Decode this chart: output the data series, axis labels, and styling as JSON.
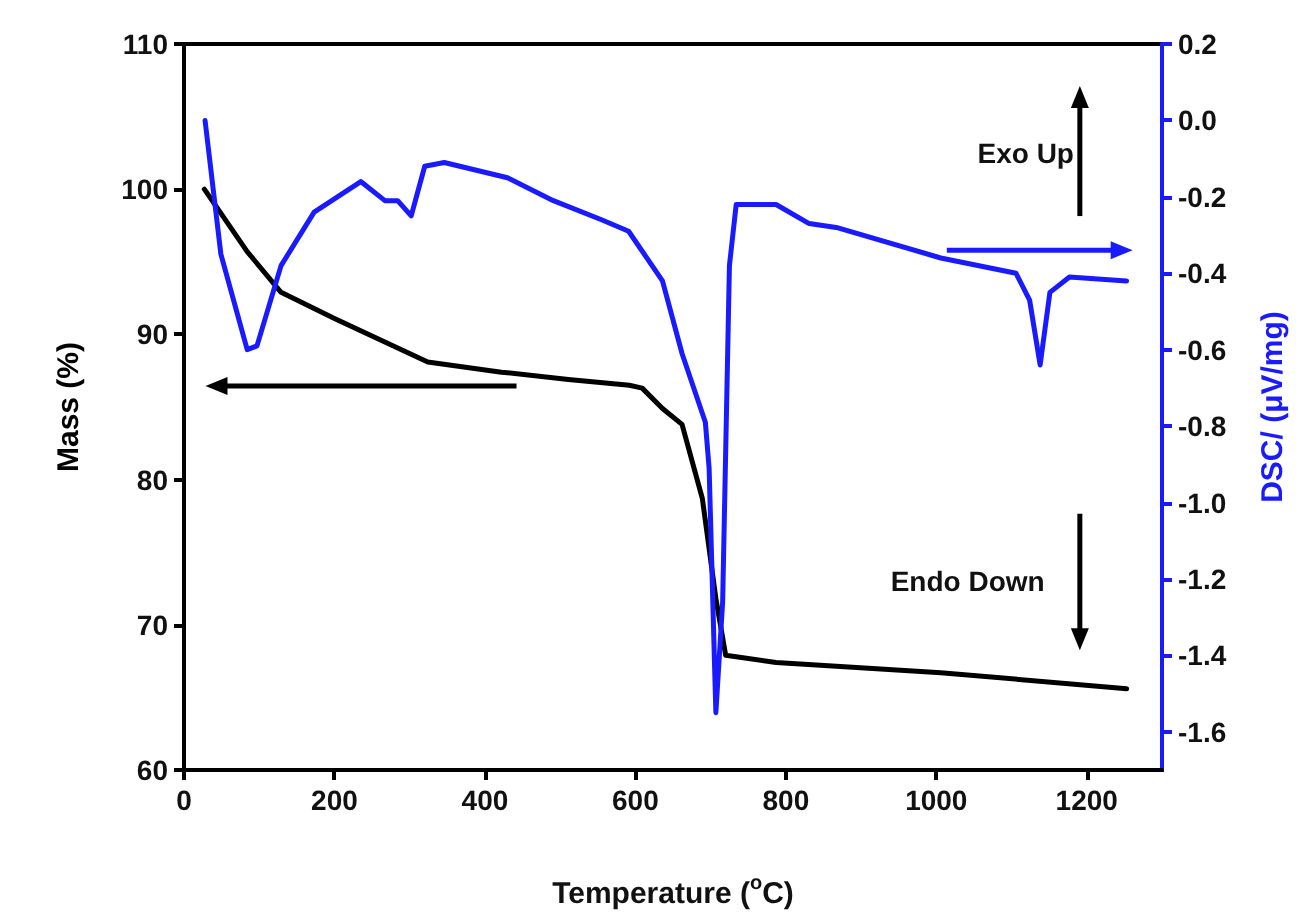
{
  "chart_data": {
    "type": "line",
    "xlabel": "Temperature ($^{o}$C)",
    "ylabel": "Mass (%)",
    "y2label": "DSC/ (μV/mg)",
    "xlim": [
      0,
      1300
    ],
    "xticks": [
      0,
      200,
      400,
      600,
      800,
      1000,
      1200
    ],
    "ylim": [
      60,
      110
    ],
    "yticks": [
      60,
      70,
      80,
      90,
      100,
      110
    ],
    "y2lim": [
      -1.7,
      0.2
    ],
    "y2ticks": [
      -1.6,
      -1.4,
      -1.2,
      {
        "value": -1,
        "label": "-1.0"
      },
      -0.8,
      -0.6,
      -0.4,
      -0.2,
      {
        "value": 0,
        "label": "0.0"
      },
      0.2
    ],
    "grid": false,
    "marker": "none",
    "line_style": "solid",
    "annotations": [
      "Exo Up",
      "Endo Down"
    ],
    "series": [
      {
        "color": "#000000",
        "x": [
          27,
          84,
          129,
          200,
          324,
          422,
          511,
          592,
          609,
          636,
          662,
          689,
          707,
          720,
          787,
          1006,
          1253
        ],
        "values": [
          100,
          95.7,
          92.9,
          91.1,
          88.1,
          87.4,
          86.9,
          86.5,
          86.3,
          84.9,
          83.8,
          78.7,
          71.8,
          67.9,
          67.4,
          66.7,
          65.6
        ]
      },
      {
        "color": "#1a1aff",
        "axis": "y2",
        "x": [
          28,
          49,
          84,
          97,
          129,
          173,
          235,
          267,
          284,
          302,
          320,
          346,
          430,
          491,
          555,
          591,
          636,
          662,
          693,
          698,
          707,
          716,
          725,
          734,
          787,
          831,
          867,
          1006,
          1106,
          1124,
          1138,
          1151,
          1177,
          1253
        ],
        "values": [
          0.0,
          -0.35,
          -0.6,
          -0.59,
          -0.38,
          -0.24,
          -0.16,
          -0.21,
          -0.21,
          -0.25,
          -0.12,
          -0.11,
          -0.15,
          -0.21,
          -0.26,
          -0.29,
          -0.42,
          -0.61,
          -0.79,
          -0.91,
          -1.55,
          -1.26,
          -0.38,
          -0.22,
          -0.22,
          -0.27,
          -0.28,
          -0.36,
          -0.4,
          -0.47,
          -0.64,
          -0.45,
          -0.41,
          -0.42
        ]
      }
    ]
  }
}
